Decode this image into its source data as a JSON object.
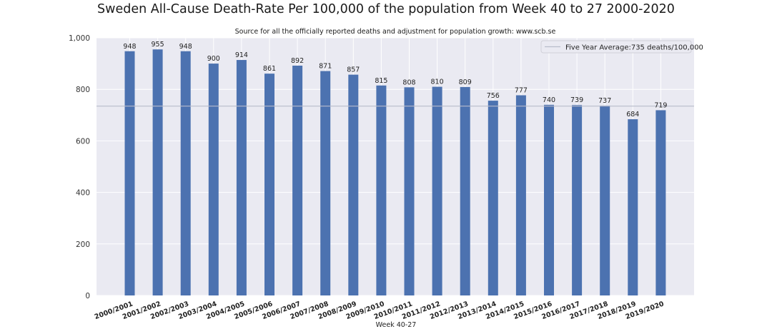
{
  "chart_data": {
    "type": "bar",
    "title": "Sweden All-Cause Death-Rate Per 100,000 of the population from Week 40 to 27 2000-2020",
    "subtitle": "Source for all the officially reported deaths and adjustment for population growth: www.scb.se",
    "xlabel": "Week 40-27",
    "ylabel": "",
    "ylim": [
      0,
      1000
    ],
    "yticks": [
      0,
      200,
      400,
      600,
      800,
      1000
    ],
    "ytick_labels": [
      "0",
      "200",
      "400",
      "600",
      "800",
      "1,000"
    ],
    "categories": [
      "2000/2001",
      "2001/2002",
      "2002/2003",
      "2003/2004",
      "2004/2005",
      "2005/2006",
      "2006/2007",
      "2007/2008",
      "2008/2009",
      "2009/2010",
      "2010/2011",
      "2011/2012",
      "2012/2013",
      "2013/2014",
      "2014/2015",
      "2015/2016",
      "2016/2017",
      "2017/2018",
      "2018/2019",
      "2019/2020"
    ],
    "values": [
      948,
      955,
      948,
      900,
      914,
      861,
      892,
      871,
      857,
      815,
      808,
      810,
      809,
      756,
      777,
      740,
      739,
      737,
      684,
      719
    ],
    "reference_line": {
      "value": 735,
      "label": "Five Year Average:735 deaths/100,000"
    },
    "legend_position": "top-right",
    "grid": true,
    "colors": {
      "bar": "#4c72b0",
      "background": "#eaeaf2",
      "grid": "#ffffff",
      "reference": "#b8bccb"
    }
  }
}
